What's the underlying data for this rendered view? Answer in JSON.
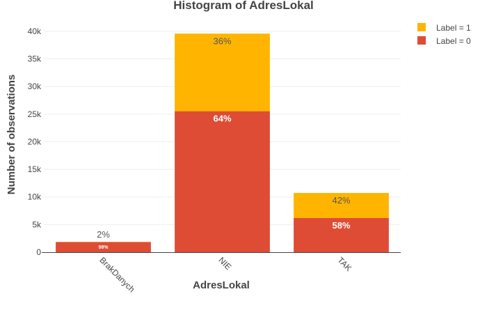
{
  "chart_data": {
    "type": "bar",
    "stacked": true,
    "title": "Histogram of AdresLokal",
    "xlabel": "AdresLokal",
    "ylabel": "Number of observations",
    "categories": [
      "BrakDanych",
      "NIE",
      "TAK"
    ],
    "ylim": [
      0,
      41000
    ],
    "yticks": [
      0,
      5000,
      10000,
      15000,
      20000,
      25000,
      30000,
      35000,
      40000
    ],
    "ytick_labels": [
      "0",
      "5k",
      "10k",
      "15k",
      "20k",
      "25k",
      "30k",
      "35k",
      "40k"
    ],
    "grid": true,
    "legend_position": "top-right",
    "series": [
      {
        "name": "Label = 0",
        "color": "#de4c36",
        "values": [
          1830,
          25530,
          6200
        ],
        "labels": [
          "98%",
          "64%",
          "58%"
        ],
        "label_color": "#ffffff"
      },
      {
        "name": "Label = 1",
        "color": "#ffb400",
        "values": [
          40,
          14050,
          4530
        ],
        "labels": [
          "2%",
          "36%",
          "42%"
        ],
        "label_color": "#555555"
      }
    ],
    "legend_order": [
      "Label = 1",
      "Label = 0"
    ]
  }
}
